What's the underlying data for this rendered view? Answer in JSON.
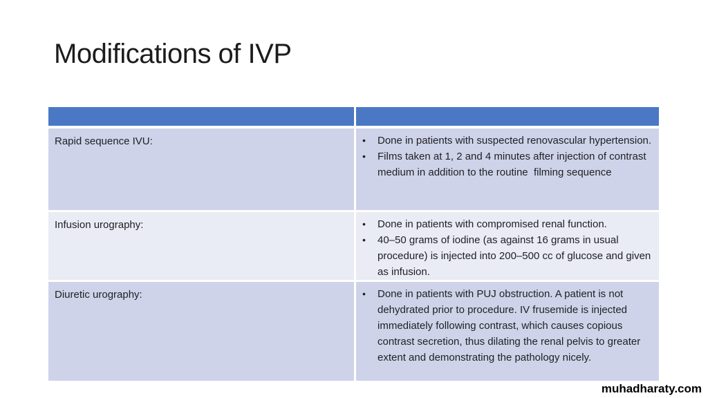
{
  "slide": {
    "title": "Modifications of IVP",
    "watermark": "muhadharaty.com"
  },
  "colors": {
    "background": "#ffffff",
    "header_blue": "#4a78c4",
    "row_dark": "#ced3e9",
    "row_light": "#e9ebf5",
    "text": "#1f1f23",
    "title_text": "#1c1c1c",
    "watermark_text": "#000000"
  },
  "table": {
    "header": {
      "left_label": "",
      "right_label": ""
    },
    "rows": [
      {
        "label": "Rapid sequence IVU:",
        "shade": "dark",
        "bullets": [
          "Done in patients with suspected renovascular hypertension.",
          "Films taken at 1, 2 and 4 minutes after injection of contrast medium in addition to the routine  filming sequence"
        ]
      },
      {
        "label": "Infusion urography:",
        "shade": "light",
        "bullets": [
          "Done in patients with compromised renal function.",
          "40–50 grams of iodine (as against 16 grams in usual procedure) is injected into 200–500 cc of glucose and given as infusion."
        ]
      },
      {
        "label": "Diuretic urography:",
        "shade": "dark",
        "bullets": [
          "Done in patients with PUJ obstruction. A patient is not dehydrated prior to procedure. IV frusemide is injected immediately following contrast, which causes copious  contrast secretion, thus dilating the renal pelvis to greater extent and demonstrating the pathology nicely."
        ]
      }
    ]
  }
}
